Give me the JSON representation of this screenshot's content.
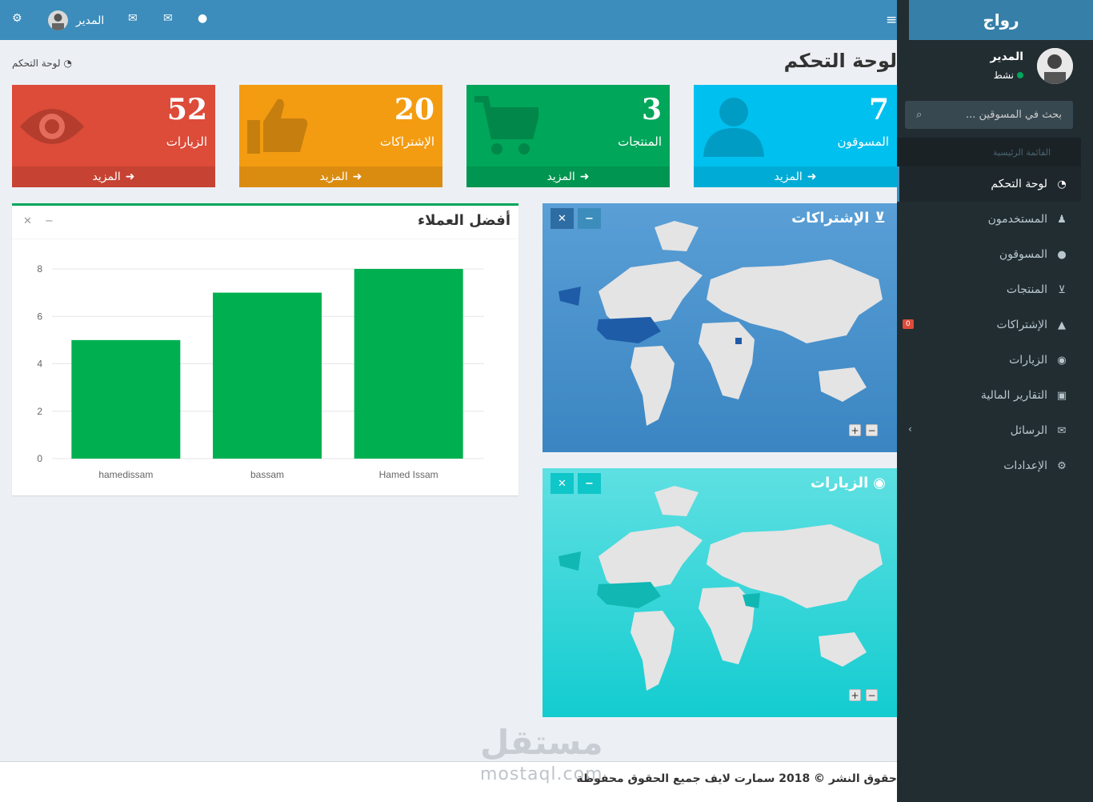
{
  "brand": "رواج",
  "topnav": {
    "username": "المدير"
  },
  "sidebar": {
    "user_name": "المدير",
    "user_status": "نشط",
    "search_placeholder": "بحث في المسوقين ...",
    "header": "القائمة الرئيسية",
    "items": [
      {
        "label": "لوحة التحكم",
        "icon": "dashboard-icon"
      },
      {
        "label": "المستخدمون",
        "icon": "user-secret-icon"
      },
      {
        "label": "المسوقون",
        "icon": "user-icon"
      },
      {
        "label": "المنتجات",
        "icon": "cart-icon"
      },
      {
        "label": "الإشتراكات",
        "icon": "thumbs-up-icon",
        "badge": "0"
      },
      {
        "label": "الزيارات",
        "icon": "eye-icon"
      },
      {
        "label": "التقارير المالية",
        "icon": "money-icon"
      },
      {
        "label": "الرسائل",
        "icon": "envelope-icon"
      },
      {
        "label": "الإعدادات",
        "icon": "cogs-icon"
      }
    ]
  },
  "page": {
    "title": "لوحة التحكم",
    "breadcrumb": "لوحة التحكم"
  },
  "stats": [
    {
      "value": "7",
      "label": "المسوقون",
      "more": "المزيد",
      "color": "#00c0ef"
    },
    {
      "value": "3",
      "label": "المنتجات",
      "more": "المزيد",
      "color": "#00a65a"
    },
    {
      "value": "20",
      "label": "الإشتراكات",
      "more": "المزيد",
      "color": "#f39c12"
    },
    {
      "value": "52",
      "label": "الزيارات",
      "more": "المزيد",
      "color": "#dd4b39"
    }
  ],
  "maps": {
    "subscriptions_title": "الإشتراكات",
    "visits_title": "الزيارات"
  },
  "best_customers": {
    "title": "أفضل العملاء"
  },
  "chart_data": {
    "type": "bar",
    "title": "أفضل العملاء",
    "categories": [
      "hamedissam",
      "bassam",
      "Hamed Issam"
    ],
    "values": [
      5,
      7,
      8
    ],
    "ylim": [
      0,
      8
    ],
    "yticks": [
      0,
      2,
      4,
      6,
      8
    ],
    "grid": true,
    "color": "#00b050"
  },
  "footer": {
    "copyright": "حقوق النشر © 2018 سمارت لايف جميع الحقوق محفوظة"
  },
  "watermark": {
    "logo": "مستقل",
    "domain": "mostaql.com"
  }
}
